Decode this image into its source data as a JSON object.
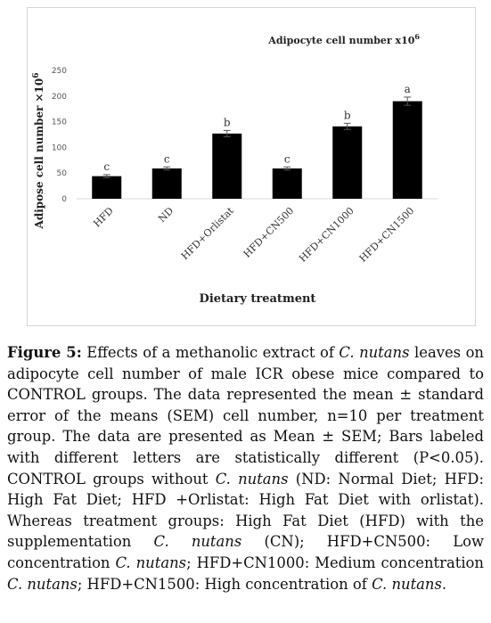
{
  "chart_data": {
    "type": "bar",
    "title": "Adipocyte  cell number  x10",
    "title_sup": "6",
    "xlabel": "Dietary treatment",
    "ylabel": "Adipose cell number",
    "ylabel_suffix": "×10",
    "ylabel_sup": "6",
    "ylim": [
      0,
      250
    ],
    "yticks": [
      "0",
      "50",
      "100",
      "150",
      "200",
      "250"
    ],
    "grid": false,
    "categories": [
      "HFD",
      "ND",
      "HFD+Orlistat",
      "HFD+CN500",
      "HFD+CN1000",
      "HFD+CN1500"
    ],
    "values": [
      44,
      59,
      127,
      59,
      141,
      190
    ],
    "errors": [
      3,
      3,
      6,
      3,
      6,
      8
    ],
    "letters": [
      "c",
      "c",
      "b",
      "c",
      "b",
      "a"
    ],
    "bar_color": "#000000"
  },
  "caption": {
    "label": "Figure 5:",
    "segments": [
      {
        "t": " Effects of a methanolic extract of ",
        "i": false
      },
      {
        "t": "C. nutans",
        "i": true
      },
      {
        "t": " leaves on adipocyte cell number of male ICR obese mice compared to CONTROL groups. The data represented the mean ± standard error of the means (SEM) cell number, n=10 per treatment group. The data are presented as Mean ± SEM; Bars labeled with different letters are statistically different (P<0.05). CONTROL groups without ",
        "i": false
      },
      {
        "t": "C. nutans",
        "i": true
      },
      {
        "t": " (ND: Normal Diet; HFD: High Fat Diet; HFD +Orlistat: High Fat Diet with orlistat). Whereas treatment groups: High Fat Diet (HFD) with the supplementation ",
        "i": false
      },
      {
        "t": "C. nutans",
        "i": true
      },
      {
        "t": " (CN); HFD+CN500: Low concentration ",
        "i": false
      },
      {
        "t": "C. nutans",
        "i": true
      },
      {
        "t": "; HFD+CN1000: Medium concentration ",
        "i": false
      },
      {
        "t": "C. nutans",
        "i": true
      },
      {
        "t": "; HFD+CN1500: High concentration of ",
        "i": false
      },
      {
        "t": "C. nutans",
        "i": true
      },
      {
        "t": ".",
        "i": false
      }
    ]
  }
}
